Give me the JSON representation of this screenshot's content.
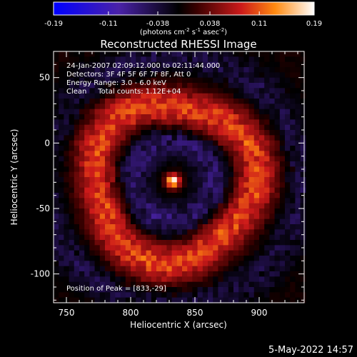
{
  "chart_data": {
    "type": "heatmap",
    "title": "Reconstructed RHESSI Image",
    "xlabel": "Heliocentric X (arcsec)",
    "ylabel": "Heliocentric Y (arcsec)",
    "xlim": [
      740,
      935
    ],
    "ylim": [
      -122,
      70
    ],
    "x_ticks": [
      750,
      800,
      850,
      900
    ],
    "y_ticks": [
      50,
      0,
      -50,
      -100
    ],
    "colorbar": {
      "min": -0.19,
      "max": 0.19,
      "ticks": [
        "-0.19",
        "-0.11",
        "-0.038",
        "0.038",
        "0.11",
        "0.19"
      ],
      "label_prefix": "(photons cm",
      "label_exp1": "-2",
      "label_mid": " s",
      "label_exp2": "-1",
      "label_mid2": " asec",
      "label_exp3": "-2",
      "label_suffix": ")"
    },
    "info_lines": [
      "24-Jan-2007 02:09:12.000 to 02:11:44.000",
      "Detectors: 3F 4F 5F 6F 7F 8F, Att 0",
      "Energy Range: 3.0 - 6.0 keV",
      "Clean     Total counts: 1.12E+04"
    ],
    "peak_text": "Position of Peak = [833,-29]",
    "peak": {
      "x": 833,
      "y": -29,
      "value": 0.19
    },
    "ring": {
      "center_x": 833,
      "center_y": -29,
      "radius_arcsec": 62,
      "value": 0.1
    },
    "pixel_size_arcsec": 4
  },
  "footer": {
    "timestamp": "5-May-2022 14:57"
  }
}
